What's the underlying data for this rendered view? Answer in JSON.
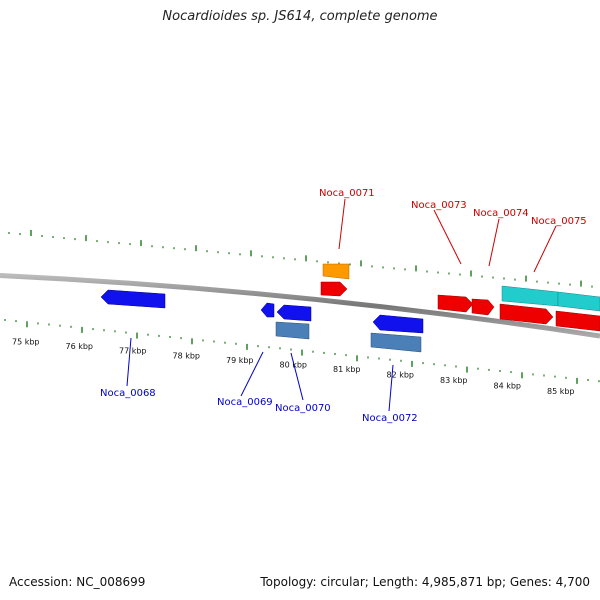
{
  "title": "Nocardioides sp. JS614, complete genome",
  "footer": {
    "accession": "Accession: NC_008699",
    "topology": "Topology: circular; Length: 4,985,871 bp; Genes: 4,700"
  },
  "colors": {
    "backbone": "#8a8a8a",
    "tick": "#1a7a1a",
    "forward_label": "#cc0000",
    "reverse_label": "#0000cc",
    "gene_red": "#ee0000",
    "gene_cyan": "#22cccc",
    "gene_orange": "#ff9900",
    "gene_blue": "#1111ee",
    "gene_steel": "#4a7fb8"
  },
  "kbp_labels": [
    "75 kbp",
    "76 kbp",
    "77 kbp",
    "78 kbp",
    "79 kbp",
    "80 kbp",
    "81 kbp",
    "82 kbp",
    "83 kbp",
    "84 kbp",
    "85 kbp"
  ],
  "gene_labels_top": [
    "Noca_0071",
    "Noca_0073",
    "Noca_0074",
    "Noca_0075"
  ],
  "gene_labels_bottom": [
    "Noca_0068",
    "Noca_0069",
    "Noca_0070",
    "Noca_0072"
  ]
}
